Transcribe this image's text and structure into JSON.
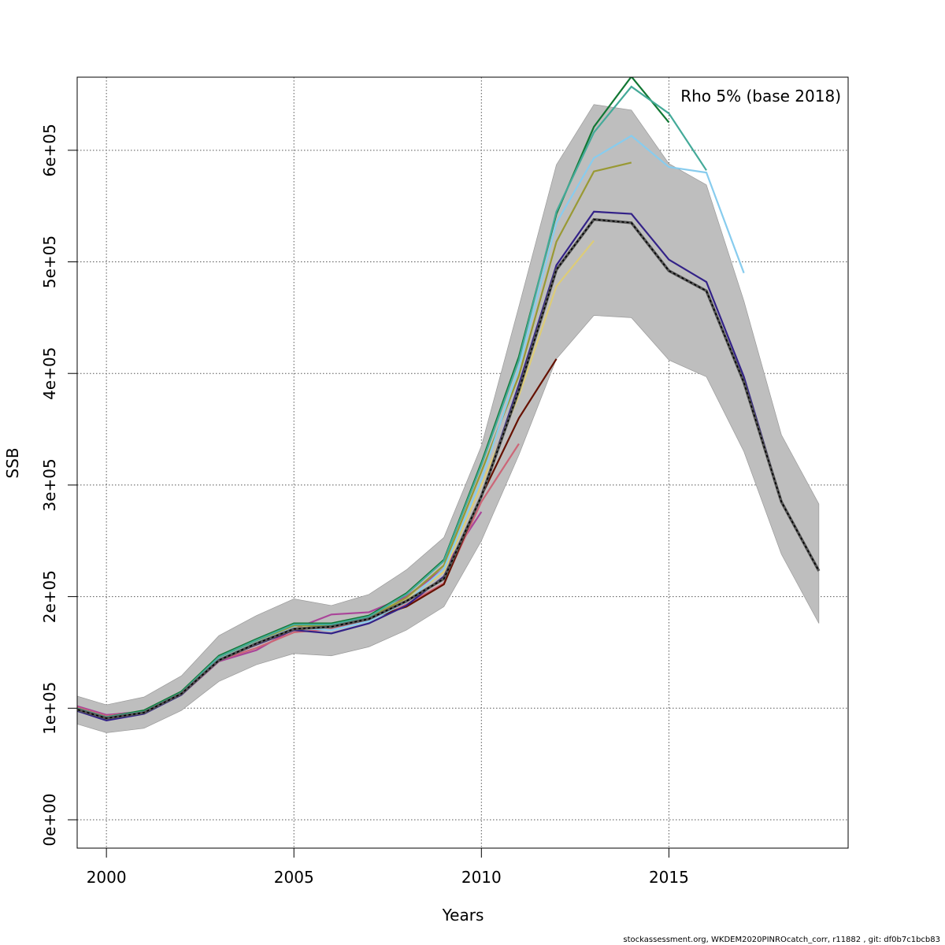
{
  "chart_data": {
    "type": "line",
    "title": "",
    "annotation": "Rho 5% (base 2018)",
    "xlabel": "Years",
    "ylabel": "SSB",
    "xlim": [
      1999.22,
      2019.78
    ],
    "ylim": [
      -25400,
      665500
    ],
    "x_ticks": [
      2000,
      2005,
      2010,
      2015
    ],
    "x_tick_labels": [
      "2000",
      "2005",
      "2010",
      "2015"
    ],
    "y_ticks": [
      0,
      100000,
      200000,
      300000,
      400000,
      500000,
      600000
    ],
    "y_tick_labels": [
      "0e+00",
      "1e+05",
      "2e+05",
      "3e+05",
      "4e+05",
      "5e+05",
      "6e+05"
    ],
    "grid": true,
    "base": {
      "color": "#000000",
      "band_color": "#bebebe",
      "x": [
        1999,
        2000,
        2001,
        2002,
        2003,
        2004,
        2005,
        2006,
        2007,
        2008,
        2009,
        2010,
        2011,
        2012,
        2013,
        2014,
        2015,
        2016,
        2017,
        2018,
        2019
      ],
      "values": [
        101000,
        91000,
        96000,
        113000,
        143000,
        158000,
        171000,
        173000,
        180000,
        196000,
        216000,
        290000,
        385000,
        493000,
        538000,
        535000,
        492000,
        474000,
        392000,
        285000,
        223000
      ],
      "lower": [
        88000,
        78000,
        82000,
        98000,
        124000,
        139000,
        149000,
        147000,
        155000,
        170000,
        191000,
        250000,
        327000,
        413000,
        452000,
        450000,
        412000,
        397000,
        330000,
        238000,
        176000
      ],
      "upper": [
        113000,
        103000,
        110000,
        129000,
        165000,
        183000,
        198000,
        192000,
        202000,
        224000,
        253000,
        335000,
        460000,
        587000,
        641000,
        636000,
        588000,
        569000,
        465000,
        345000,
        283000
      ]
    },
    "series": [
      {
        "color": "#332288",
        "values": [
          100000,
          89000,
          95000,
          112000,
          143000,
          157000,
          170000,
          167000,
          176000,
          192000,
          218000,
          290000,
          390000,
          497000,
          545000,
          543000,
          502000,
          482000,
          397000,
          285000
        ]
      },
      {
        "color": "#88CCEE",
        "values": [
          101000,
          90000,
          96000,
          113000,
          144000,
          159000,
          172000,
          170000,
          178000,
          195000,
          225000,
          305000,
          405000,
          535000,
          593000,
          613000,
          585000,
          580000,
          490000
        ]
      },
      {
        "color": "#44AA99",
        "values": [
          102000,
          92000,
          97000,
          114000,
          146000,
          161000,
          175000,
          175000,
          182000,
          202000,
          232000,
          318000,
          412000,
          545000,
          616000,
          657000,
          633000,
          582000
        ]
      },
      {
        "color": "#117733",
        "values": [
          102000,
          92000,
          98000,
          115000,
          147000,
          162000,
          176000,
          176000,
          183000,
          203000,
          233000,
          320000,
          415000,
          543000,
          621000,
          666000,
          625000
        ]
      },
      {
        "color": "#999933",
        "values": [
          101000,
          92000,
          97000,
          114000,
          145000,
          160000,
          174000,
          174000,
          181000,
          199000,
          228000,
          312000,
          398000,
          518000,
          581000,
          589000
        ]
      },
      {
        "color": "#DDCC77",
        "values": [
          101000,
          91000,
          96000,
          113000,
          144000,
          159000,
          172000,
          173000,
          180000,
          197000,
          222000,
          300000,
          380000,
          478000,
          519000
        ]
      },
      {
        "color": "#661100",
        "values": [
          102000,
          92000,
          96000,
          113000,
          144000,
          157000,
          170000,
          174000,
          180000,
          191000,
          211000,
          290000,
          360000,
          413000
        ]
      },
      {
        "color": "#CC6677",
        "values": [
          103000,
          93000,
          97000,
          113000,
          143000,
          154000,
          168000,
          171000,
          179000,
          193000,
          212000,
          285000,
          337000
        ]
      },
      {
        "color": "#AA4499",
        "values": [
          104000,
          94000,
          97000,
          112000,
          142000,
          152000,
          171000,
          184000,
          186000,
          200000,
          225000,
          276000
        ]
      }
    ],
    "series_start_year": 1999
  },
  "footer": "stockassessment.org, WKDEM2020PINROcatch_corr, r11882 , git: df0b7c1bcb83"
}
